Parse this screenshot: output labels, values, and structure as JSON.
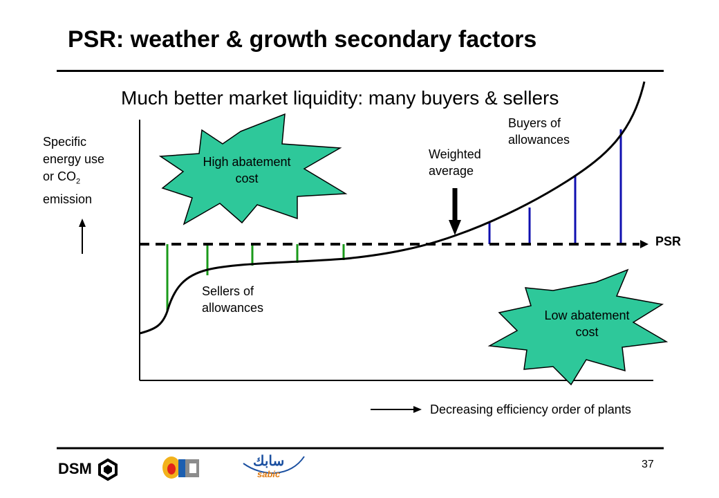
{
  "slide": {
    "title": "PSR: weather & growth secondary factors",
    "subtitle": "Much better market liquidity: many buyers & sellers",
    "page_number": "37"
  },
  "diagram": {
    "y_axis_label_lines": [
      "Specific",
      "energy use",
      "or CO",
      "emission"
    ],
    "y_axis_label_subscript": "2",
    "psr_label": "PSR",
    "x_axis_caption": "Decreasing efficiency order of plants",
    "weighted_average_label": [
      "Weighted",
      "average"
    ],
    "buyers_label": [
      "Buyers of",
      "allowances"
    ],
    "sellers_label": [
      "Sellers of",
      "allowances"
    ],
    "high_abatement_label": [
      "High abatement",
      "cost"
    ],
    "low_abatement_label": [
      "Low abatement",
      "cost"
    ],
    "colors": {
      "sellers": "#1a9a1a",
      "buyers": "#1010b0",
      "burst_fill": "#2ec89a",
      "line": "#000000"
    }
  },
  "logos": {
    "dsm": "DSM",
    "sabic": "sabic",
    "sabic_arabic": "سابك",
    "middle_logo_icon": "corporate-logo-icon"
  }
}
